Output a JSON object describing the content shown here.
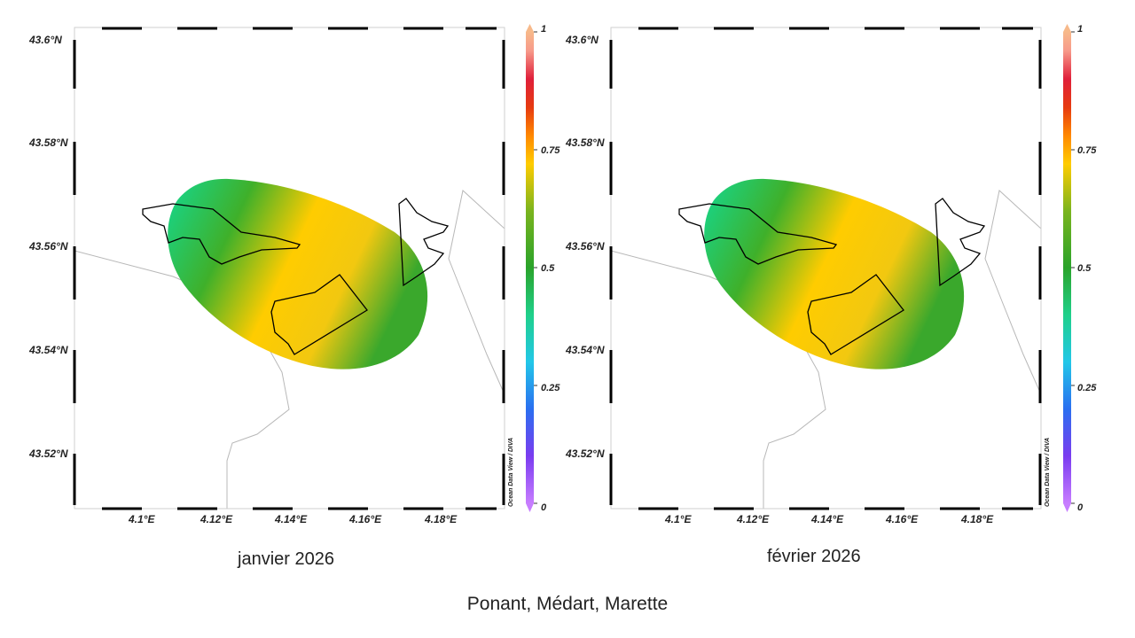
{
  "suptitle": "Ponant, Médart, Marette",
  "colorbar": {
    "ticks": [
      "0",
      "0.25",
      "0.5",
      "0.75",
      "1"
    ],
    "tick_values": [
      0,
      0.25,
      0.5,
      0.75,
      1
    ],
    "stops": [
      "#c77dff",
      "#7a3cf0",
      "#2a6ff0",
      "#22c7e8",
      "#1fd08a",
      "#2aa32a",
      "#7ab41e",
      "#ffcc00",
      "#ff8800",
      "#e63a10",
      "#e0203a",
      "#f79a8a",
      "#f7b98a"
    ]
  },
  "axes": {
    "lon_ticks": [
      "4.1°E",
      "4.12°E",
      "4.14°E",
      "4.16°E",
      "4.18°E"
    ],
    "lat_ticks": [
      "43.6°N",
      "43.58°N",
      "43.56°N",
      "43.54°N",
      "43.52°N"
    ],
    "credit": "Ocean Data View / DIVA"
  },
  "maps": [
    {
      "caption": "janvier 2026",
      "field": {
        "nw_color": "#14d890",
        "mid_color": "#3fb02a",
        "center_color": "#ffcc00",
        "east_color": "#3aa82c"
      }
    },
    {
      "caption": "février 2026",
      "field": {
        "nw_color": "#14d890",
        "mid_color": "#3fb02a",
        "center_color": "#ffcc00",
        "east_color": "#3aa82c"
      }
    }
  ]
}
